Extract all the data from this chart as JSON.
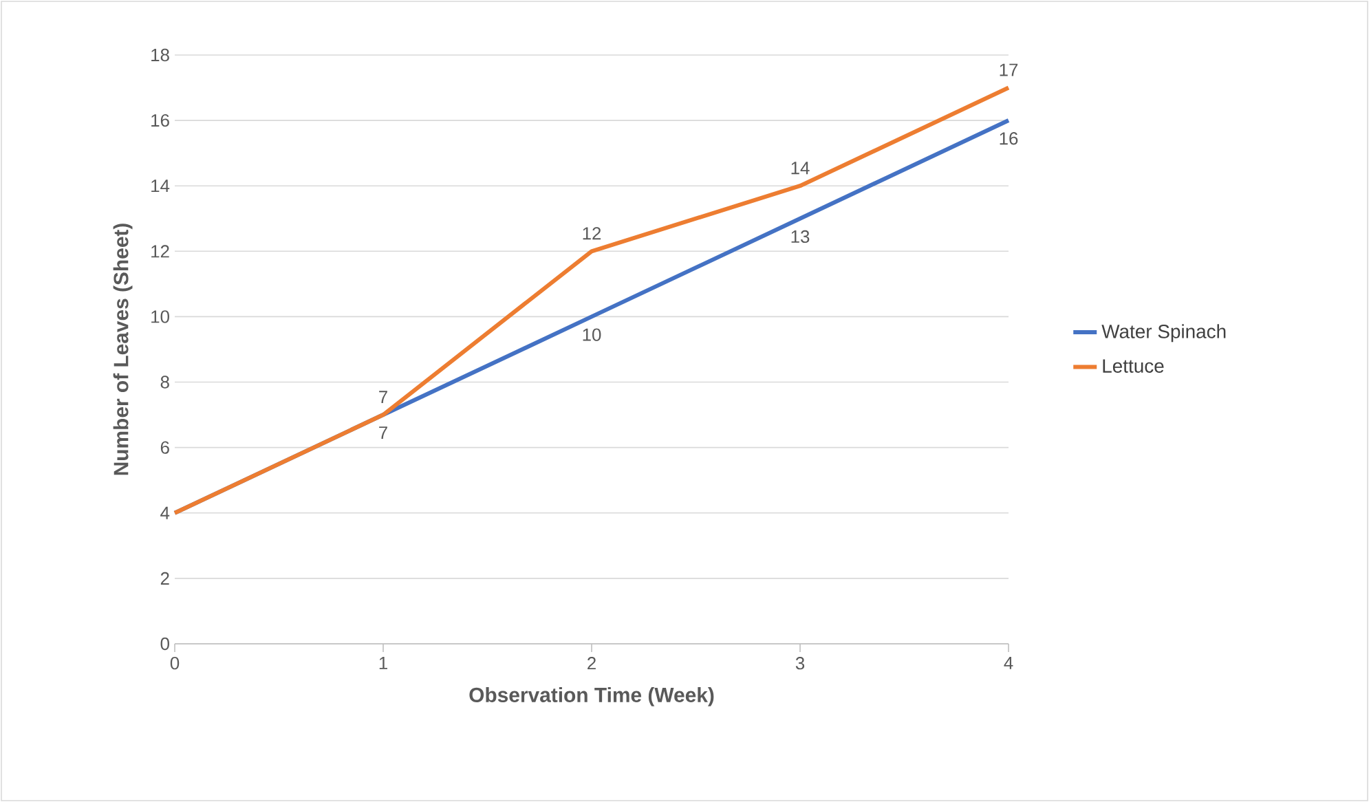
{
  "chart_data": {
    "type": "line",
    "xlabel": "Observation Time (Week)",
    "ylabel": "Number of Leaves (Sheet)",
    "x": [
      0,
      1,
      2,
      3,
      4
    ],
    "series": [
      {
        "name": "Water Spinach",
        "color": "#4472c4",
        "values": [
          4,
          7,
          10,
          13,
          16
        ],
        "value_labels": [
          null,
          "7",
          "10",
          "13",
          "16"
        ]
      },
      {
        "name": "Lettuce",
        "color": "#ed7d31",
        "values": [
          4,
          7,
          12,
          14,
          17
        ],
        "value_labels": [
          null,
          "7",
          "12",
          "14",
          "17"
        ]
      }
    ],
    "xlim": [
      0,
      4
    ],
    "xticks": [
      0,
      1,
      2,
      3,
      4
    ],
    "ylim": [
      0,
      18
    ],
    "yticks": [
      0,
      2,
      4,
      6,
      8,
      10,
      12,
      14,
      16,
      18
    ],
    "grid": "y",
    "legend": "right",
    "marker": "none",
    "line_style": "solid"
  }
}
